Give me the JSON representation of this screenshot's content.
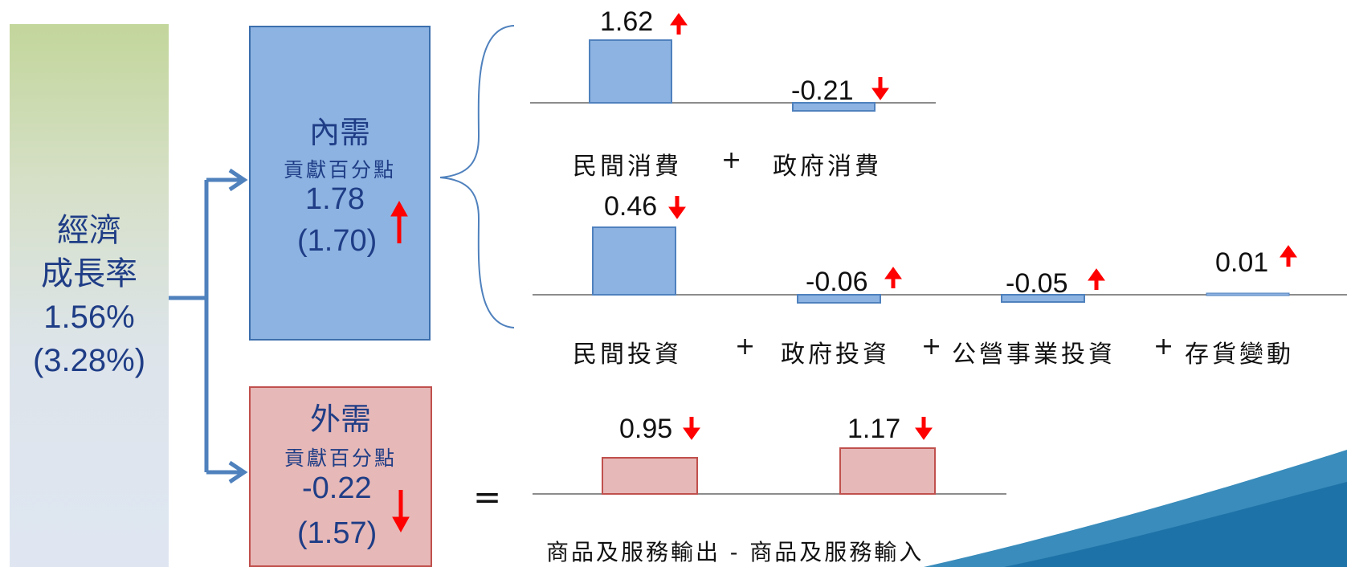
{
  "growth": {
    "title_line1": "經濟",
    "title_line2": "成長率",
    "value": "1.56%",
    "prev": "(3.28%)"
  },
  "domestic": {
    "title": "內需",
    "subtitle": "貢獻百分點",
    "value": "1.78",
    "prev": "(1.70)",
    "trend": "up"
  },
  "foreign": {
    "title": "外需",
    "subtitle": "貢獻百分點",
    "value": "-0.22",
    "prev": "(1.57)",
    "trend": "down"
  },
  "consumption": {
    "items": [
      {
        "label": "民間消費",
        "value": "1.62",
        "trend": "up"
      },
      {
        "label": "政府消費",
        "value": "-0.21",
        "trend": "down"
      }
    ],
    "operator": "+"
  },
  "investment": {
    "items": [
      {
        "label": "民間投資",
        "value": "0.46",
        "trend": "down"
      },
      {
        "label": "政府投資",
        "value": "-0.06",
        "trend": "up"
      },
      {
        "label": "公營事業投資",
        "value": "-0.05",
        "trend": "up"
      },
      {
        "label": "存貨變動",
        "value": "0.01",
        "trend": "up"
      }
    ],
    "operator": "+"
  },
  "trade": {
    "equals": "=",
    "exports_value": "0.95",
    "exports_trend": "down",
    "imports_value": "1.17",
    "imports_trend": "down",
    "label": "商品及服務輸出 - 商品及服務輸入"
  },
  "colors": {
    "domestic_fill": "#8db3e2",
    "foreign_fill": "#e6b8b7",
    "arrow_red": "#ff0000",
    "connector_blue": "#4f81bd",
    "text_navy": "#1f3d86"
  }
}
